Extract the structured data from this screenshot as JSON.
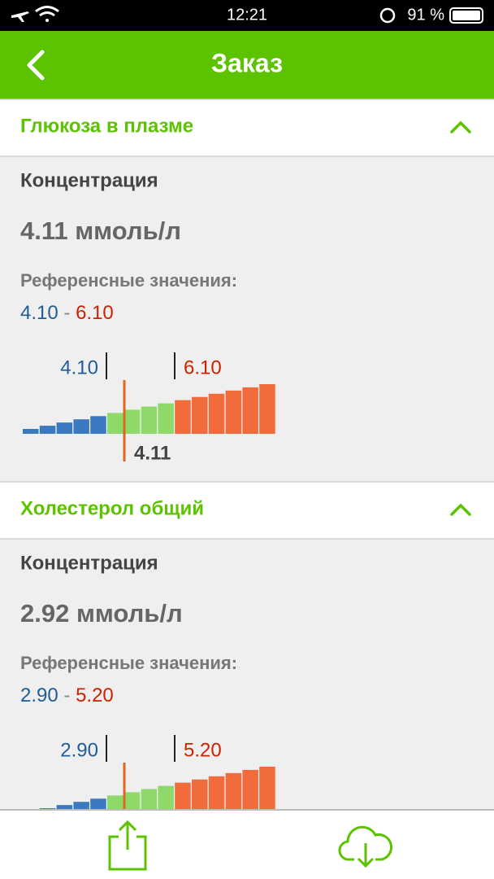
{
  "status": {
    "time": "12:21",
    "battery": "91 %"
  },
  "header": {
    "title": "Заказ"
  },
  "sections": [
    {
      "title": "Глюкоза в плазме",
      "label": "Концентрация",
      "value": "4.11",
      "unit": "ммоль/л",
      "reference": {
        "label": "Референсные значения:",
        "low": "4.10",
        "separator": "-",
        "high": "6.10"
      }
    },
    {
      "title": "Холестерол общий",
      "label": "Концентрация",
      "value": "2.92",
      "unit": "ммоль/л",
      "reference": {
        "label": "Референсные значения:",
        "low": "2.90",
        "separator": "-",
        "high": "5.20"
      }
    }
  ]
}
